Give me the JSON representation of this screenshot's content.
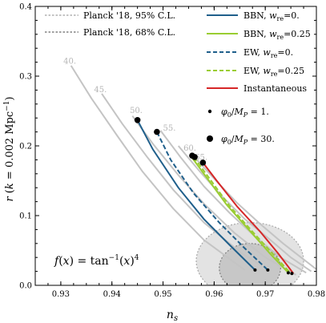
{
  "chart_data": {
    "type": "line",
    "xlabel": "n_s",
    "ylabel": "r (k = 0.002 Mpc^-1)",
    "xlim": [
      0.925,
      0.98
    ],
    "ylim": [
      0.0,
      0.4
    ],
    "xticks": [
      "0.93",
      "0.94",
      "0.95",
      "0.96",
      "0.97",
      "0.98"
    ],
    "yticks": [
      "0.0",
      "0.1",
      "0.2",
      "0.3",
      "0.4"
    ],
    "annotation": "f(x) = tan^-1(x)^4",
    "legend_left": [
      {
        "label": "Planck '18, 95% C.L.",
        "style": "dotted",
        "color": "#b0b0b0"
      },
      {
        "label": "Planck '18, 68% C.L.",
        "style": "dotted",
        "color": "#808080"
      }
    ],
    "legend_right": [
      {
        "label": "BBN, w_re=0.",
        "color": "#1f5f8b",
        "dash": false
      },
      {
        "label": "BBN, w_re=0.25",
        "color": "#9acd32",
        "dash": false
      },
      {
        "label": "EW, w_re=0.",
        "color": "#1f5f8b",
        "dash": true
      },
      {
        "label": "EW, w_re=0.25",
        "color": "#9acd32",
        "dash": true
      },
      {
        "label": "Instantaneous",
        "color": "#d62728",
        "dash": false
      }
    ],
    "marker_legend": [
      {
        "label": "φ0/MP = 1.",
        "size": "small"
      },
      {
        "label": "φ0/MP = 30.",
        "size": "large"
      }
    ],
    "efold_labels": [
      {
        "text": "40.",
        "x": 0.9305,
        "y": 0.318
      },
      {
        "text": "45.",
        "x": 0.9365,
        "y": 0.277
      },
      {
        "text": "50.",
        "x": 0.9435,
        "y": 0.247
      },
      {
        "text": "55.",
        "x": 0.95,
        "y": 0.222
      },
      {
        "text": "60.",
        "x": 0.954,
        "y": 0.193
      },
      {
        "text": "65.",
        "x": 0.9562,
        "y": 0.18
      }
    ],
    "gray_curves": [
      [
        [
          0.932,
          0.315
        ],
        [
          0.936,
          0.268
        ],
        [
          0.941,
          0.215
        ],
        [
          0.946,
          0.163
        ],
        [
          0.952,
          0.11
        ],
        [
          0.958,
          0.065
        ],
        [
          0.966,
          0.022
        ]
      ],
      [
        [
          0.938,
          0.275
        ],
        [
          0.942,
          0.232
        ],
        [
          0.947,
          0.183
        ],
        [
          0.952,
          0.137
        ],
        [
          0.958,
          0.09
        ],
        [
          0.965,
          0.048
        ],
        [
          0.971,
          0.02
        ]
      ],
      [
        [
          0.944,
          0.243
        ],
        [
          0.948,
          0.203
        ],
        [
          0.953,
          0.158
        ],
        [
          0.958,
          0.117
        ],
        [
          0.964,
          0.075
        ],
        [
          0.97,
          0.04
        ],
        [
          0.976,
          0.015
        ]
      ],
      [
        [
          0.9495,
          0.222
        ],
        [
          0.9535,
          0.183
        ],
        [
          0.958,
          0.142
        ],
        [
          0.963,
          0.104
        ],
        [
          0.968,
          0.07
        ],
        [
          0.973,
          0.04
        ],
        [
          0.978,
          0.018
        ]
      ],
      [
        [
          0.953,
          0.2
        ],
        [
          0.957,
          0.165
        ],
        [
          0.9615,
          0.128
        ],
        [
          0.966,
          0.095
        ],
        [
          0.971,
          0.065
        ],
        [
          0.975,
          0.04
        ],
        [
          0.979,
          0.02
        ]
      ],
      [
        [
          0.956,
          0.185
        ],
        [
          0.96,
          0.153
        ],
        [
          0.9645,
          0.118
        ],
        [
          0.969,
          0.088
        ],
        [
          0.9735,
          0.06
        ],
        [
          0.977,
          0.04
        ],
        [
          0.98,
          0.023
        ]
      ]
    ],
    "series": [
      {
        "name": "BBN, w_re=0.",
        "color": "#1f5f8b",
        "dash": false,
        "points": [
          [
            0.945,
            0.237
          ],
          [
            0.948,
            0.195
          ],
          [
            0.953,
            0.14
          ],
          [
            0.958,
            0.095
          ],
          [
            0.963,
            0.058
          ],
          [
            0.968,
            0.022
          ]
        ]
      },
      {
        "name": "EW, w_re=0.",
        "color": "#1f5f8b",
        "dash": true,
        "points": [
          [
            0.9488,
            0.22
          ],
          [
            0.9515,
            0.18
          ],
          [
            0.956,
            0.132
          ],
          [
            0.961,
            0.09
          ],
          [
            0.966,
            0.053
          ],
          [
            0.9705,
            0.022
          ]
        ]
      },
      {
        "name": "BBN, w_re=0.25",
        "color": "#9acd32",
        "dash": false,
        "points": [
          [
            0.9555,
            0.185
          ],
          [
            0.9585,
            0.155
          ],
          [
            0.9625,
            0.115
          ],
          [
            0.967,
            0.078
          ],
          [
            0.971,
            0.045
          ],
          [
            0.9745,
            0.018
          ]
        ]
      },
      {
        "name": "EW, w_re=0.25",
        "color": "#9acd32",
        "dash": true,
        "points": [
          [
            0.956,
            0.184
          ],
          [
            0.959,
            0.154
          ],
          [
            0.963,
            0.114
          ],
          [
            0.9675,
            0.077
          ],
          [
            0.9715,
            0.045
          ],
          [
            0.975,
            0.017
          ]
        ]
      },
      {
        "name": "Instantaneous",
        "color": "#d62728",
        "dash": false,
        "points": [
          [
            0.9578,
            0.176
          ],
          [
            0.9605,
            0.15
          ],
          [
            0.9645,
            0.113
          ],
          [
            0.969,
            0.077
          ],
          [
            0.9725,
            0.046
          ],
          [
            0.9755,
            0.017
          ]
        ]
      }
    ],
    "markers": [
      {
        "x": 0.945,
        "y": 0.237,
        "size": "large"
      },
      {
        "x": 0.9488,
        "y": 0.22,
        "size": "large"
      },
      {
        "x": 0.9557,
        "y": 0.186,
        "size": "large"
      },
      {
        "x": 0.9562,
        "y": 0.184,
        "size": "large"
      },
      {
        "x": 0.9578,
        "y": 0.176,
        "size": "large"
      },
      {
        "x": 0.968,
        "y": 0.022,
        "size": "small"
      },
      {
        "x": 0.9705,
        "y": 0.022,
        "size": "small"
      },
      {
        "x": 0.9745,
        "y": 0.018,
        "size": "small"
      },
      {
        "x": 0.9752,
        "y": 0.017,
        "size": "small"
      }
    ],
    "contours": {
      "c95": {
        "cx": 0.967,
        "cy": 0.035,
        "rx": 0.0105,
        "ry": 0.055
      },
      "c68": {
        "cx": 0.967,
        "cy": 0.025,
        "rx": 0.006,
        "ry": 0.035
      }
    }
  }
}
